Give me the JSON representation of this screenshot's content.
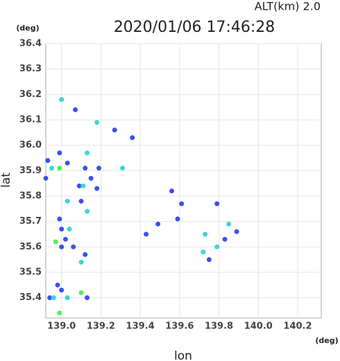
{
  "chart_data": {
    "type": "scatter",
    "title": "2020/01/06 17:46:28",
    "annotation": "ALT(km) 2.0",
    "y_unit": "(deg)",
    "x_unit": "(deg)",
    "x_label": "lon",
    "y_label": "lat",
    "xlim": [
      138.92,
      140.32
    ],
    "ylim": [
      35.32,
      36.4
    ],
    "xticks": [
      {
        "value": 139,
        "label": "139.0"
      },
      139.2,
      139.4,
      139.6,
      139.8,
      {
        "value": 140,
        "label": "140.0"
      },
      140.2
    ],
    "yticks": [
      35.4,
      35.5,
      35.6,
      35.7,
      35.8,
      35.9,
      {
        "value": 36,
        "label": "36.0"
      },
      36.1,
      36.2,
      36.3,
      36.4
    ],
    "grid": true,
    "series": [
      {
        "color": "#3a4ff5",
        "x": [
          139.07,
          138.99,
          139.03,
          138.93,
          138.92,
          139.12,
          139.27,
          139.36,
          139.19,
          139.15,
          139.09,
          139.18,
          139.1,
          138.99,
          139.0,
          139.02,
          139.06,
          139.0,
          139.12,
          138.98,
          139.0,
          138.94,
          139.13,
          139.56,
          139.61,
          139.79,
          139.49,
          139.43,
          139.89,
          139.83,
          139.75,
          139.59
        ],
        "values": [
          36.14,
          35.97,
          35.93,
          35.94,
          35.87,
          35.91,
          36.06,
          36.03,
          35.91,
          35.87,
          35.84,
          35.83,
          35.78,
          35.71,
          35.67,
          35.63,
          35.6,
          35.6,
          35.57,
          35.45,
          35.43,
          35.4,
          35.4,
          35.82,
          35.77,
          35.77,
          35.69,
          35.65,
          35.66,
          35.63,
          35.55,
          35.71
        ]
      },
      {
        "color": "#3ad6d6",
        "x": [
          139.0,
          138.95,
          139.18,
          139.13,
          139.31,
          139.11,
          139.03,
          139.13,
          139.04,
          139.1,
          138.96,
          139.03,
          139.73,
          139.85,
          139.79,
          139.72
        ],
        "values": [
          36.18,
          35.91,
          36.09,
          35.97,
          35.91,
          35.84,
          35.78,
          35.74,
          35.67,
          35.54,
          35.4,
          35.4,
          35.65,
          35.69,
          35.6,
          35.58
        ]
      },
      {
        "color": "#55ee55",
        "x": [
          138.99,
          138.97,
          139.1,
          138.99
        ],
        "values": [
          35.91,
          35.62,
          35.42,
          35.34
        ]
      }
    ]
  }
}
